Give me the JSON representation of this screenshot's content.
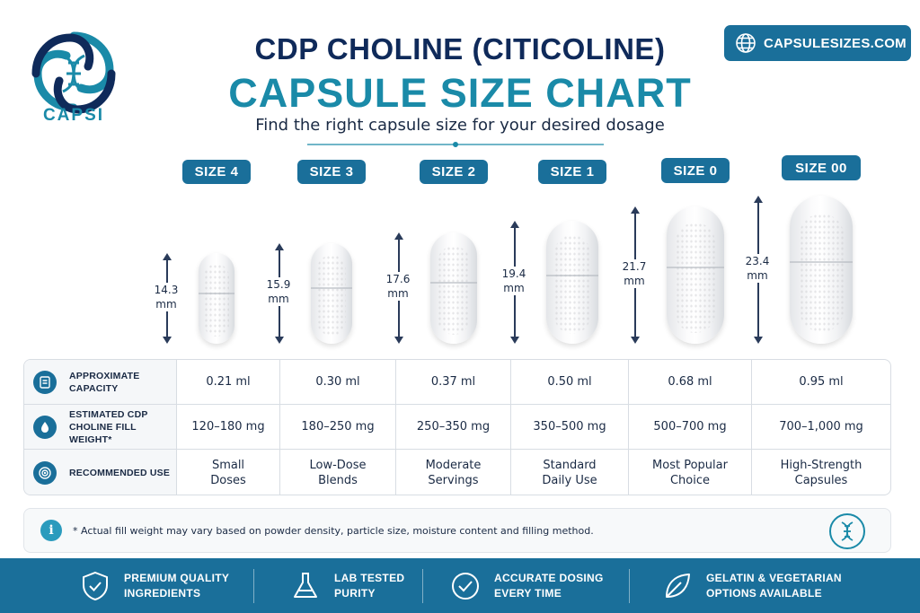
{
  "brand": {
    "logo_text": "CAPSI",
    "website": "CAPSULESIZES.COM"
  },
  "header": {
    "title_line1": "CDP CHOLINE (CITICOLINE)",
    "title_line2": "CAPSULE SIZE CHART",
    "subtitle": "Find the right capsule size for your desired dosage"
  },
  "sizes": [
    {
      "label": "SIZE 4",
      "length_value": "14.3",
      "length_unit": "mm",
      "length_mm": 14.3
    },
    {
      "label": "SIZE 3",
      "length_value": "15.9",
      "length_unit": "mm",
      "length_mm": 15.9
    },
    {
      "label": "SIZE 2",
      "length_value": "17.6",
      "length_unit": "mm",
      "length_mm": 17.6
    },
    {
      "label": "SIZE 1",
      "length_value": "19.4",
      "length_unit": "mm",
      "length_mm": 19.4
    },
    {
      "label": "SIZE 0",
      "length_value": "21.7",
      "length_unit": "mm",
      "length_mm": 21.7
    },
    {
      "label": "SIZE 00",
      "length_value": "23.4",
      "length_unit": "mm",
      "length_mm": 23.4
    }
  ],
  "table": {
    "row_labels": {
      "capacity": [
        "APPROXIMATE",
        "CAPACITY"
      ],
      "fill_weight": [
        "ESTIMATED CDP",
        "CHOLINE FILL WEIGHT*"
      ],
      "use": [
        "RECOMMENDED USE"
      ]
    },
    "capacity": [
      "0.21 ml",
      "0.30 ml",
      "0.37 ml",
      "0.50 ml",
      "0.68 ml",
      "0.95 ml"
    ],
    "fill_weight": [
      "120–180 mg",
      "180–250 mg",
      "250–350 mg",
      "350–500 mg",
      "500–700 mg",
      "700–1,000 mg"
    ],
    "use": [
      [
        "Small",
        "Doses"
      ],
      [
        "Low-Dose",
        "Blends"
      ],
      [
        "Moderate",
        "Servings"
      ],
      [
        "Standard",
        "Daily Use"
      ],
      [
        "Most Popular",
        "Choice"
      ],
      [
        "High-Strength",
        "Capsules"
      ]
    ]
  },
  "note": {
    "icon": "info-icon",
    "text": "* Actual fill weight may vary based on powder density, particle size, moisture content and filling method."
  },
  "footer": [
    {
      "icon": "shield-check-icon",
      "line1": "PREMIUM QUALITY",
      "line2": "INGREDIENTS"
    },
    {
      "icon": "flask-icon",
      "line1": "LAB TESTED",
      "line2": "PURITY"
    },
    {
      "icon": "check-circle-icon",
      "line1": "ACCURATE DOSING",
      "line2": "EVERY TIME"
    },
    {
      "icon": "leaf-icon",
      "line1": "GELATIN & VEGETARIAN",
      "line2": "OPTIONS AVAILABLE"
    }
  ],
  "colors": {
    "primary": "#1a6f9a",
    "accent": "#1a8aa8",
    "navy": "#0f2a5a"
  }
}
